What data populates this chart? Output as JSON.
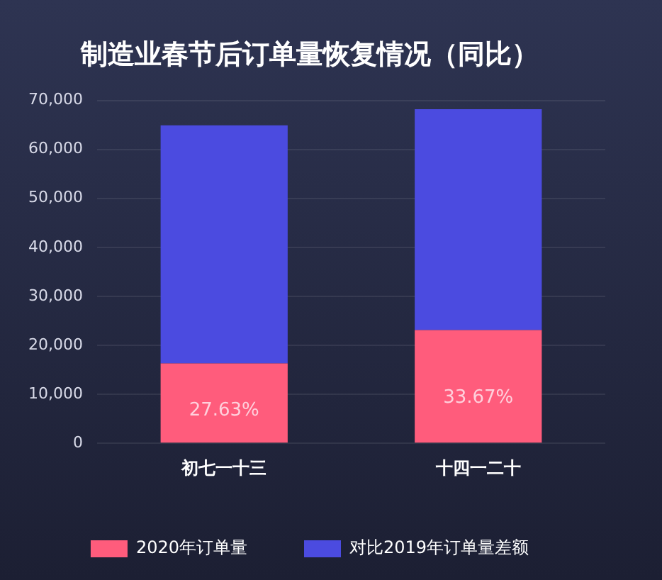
{
  "chart_data": {
    "type": "bar",
    "title": "制造业春节后订单量恢复情况（同比）",
    "categories": [
      "初七一十三",
      "十四一二十"
    ],
    "stacked": true,
    "series": [
      {
        "name": "2020年订单量",
        "color": "#ff5c7c",
        "values": [
          16300,
          23100
        ]
      },
      {
        "name": "对比2019年订单量差额",
        "color": "#4b4be0",
        "values": [
          48600,
          45100
        ]
      }
    ],
    "ylim": [
      0,
      70000
    ],
    "yticks": [
      {
        "value": 0,
        "label": "0"
      },
      {
        "value": 10000,
        "label": "10,000"
      },
      {
        "value": 20000,
        "label": "20,000"
      },
      {
        "value": 30000,
        "label": "30,000"
      },
      {
        "value": 40000,
        "label": "40,000"
      },
      {
        "value": 50000,
        "label": "50,000"
      },
      {
        "value": 60000,
        "label": "60,000"
      },
      {
        "value": 70000,
        "label": "70,000"
      }
    ],
    "grid": "y",
    "legend": "bottom",
    "annotations": [
      "27.63%",
      "33.67%"
    ]
  }
}
